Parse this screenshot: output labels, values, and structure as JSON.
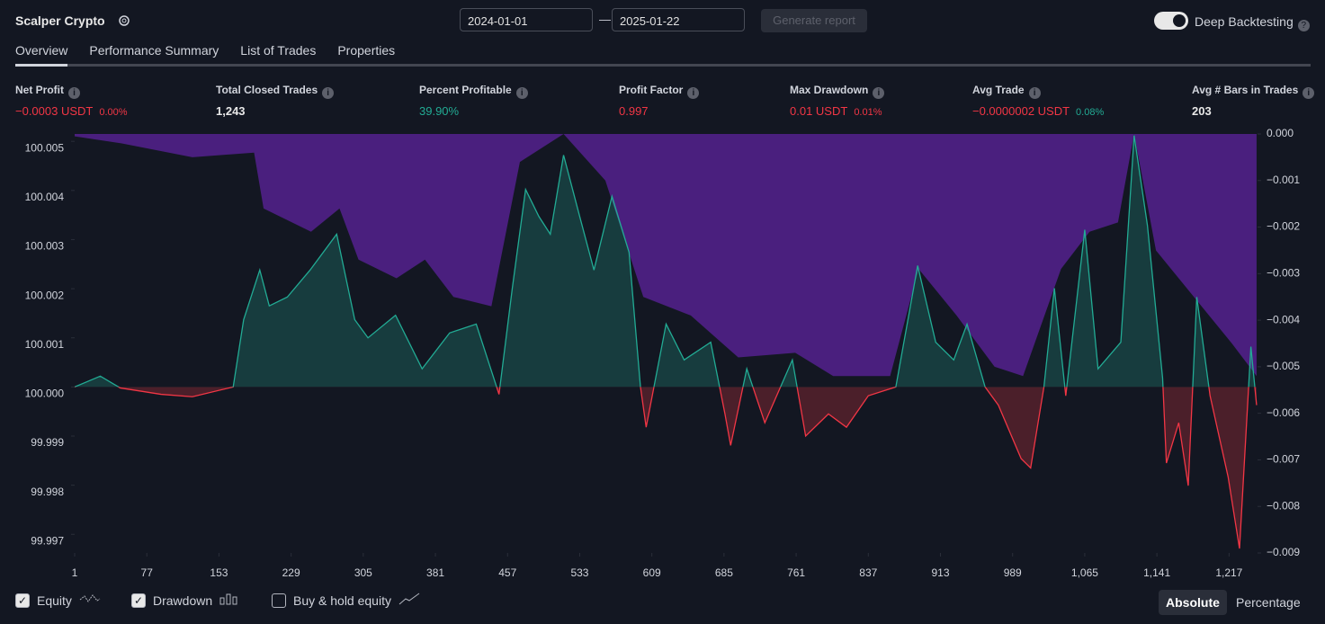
{
  "header": {
    "title": "Scalper Crypto",
    "start_date": "2024-01-01",
    "end_date": "2025-01-22",
    "generate_button": "Generate report",
    "toggle_label": "Deep Backtesting"
  },
  "tabs": [
    "Overview",
    "Performance Summary",
    "List of Trades",
    "Properties"
  ],
  "metrics": [
    {
      "label": "Net Profit",
      "value": "−0.0003 USDT",
      "percent": "0.00%",
      "tone": "negative"
    },
    {
      "label": "Total Closed Trades",
      "value": "1,243",
      "tone": "neutral"
    },
    {
      "label": "Percent Profitable",
      "value": "39.90%",
      "tone": "positive"
    },
    {
      "label": "Profit Factor",
      "value": "0.997",
      "tone": "negative"
    },
    {
      "label": "Max Drawdown",
      "value": "0.01 USDT",
      "percent": "0.01%",
      "tone": "negative"
    },
    {
      "label": "Avg Trade",
      "value": "−0.0000002 USDT",
      "percent": "0.08%",
      "tone": "negative",
      "percent_tone": "positive"
    },
    {
      "label": "Avg # Bars in Trades",
      "value": "203",
      "tone": "neutral"
    }
  ],
  "chart_data": {
    "type": "line",
    "xlim": [
      1,
      1247
    ],
    "xticks": [
      1,
      77,
      153,
      229,
      305,
      381,
      457,
      533,
      609,
      685,
      761,
      837,
      913,
      989,
      {
        "value": 1065,
        "label": "1,065"
      },
      {
        "value": 1141,
        "label": "1,141"
      },
      {
        "value": 1217,
        "label": "1,217"
      }
    ],
    "ylim": [
      99.99662,
      100.00515
    ],
    "yticks": [
      100.005,
      100.004,
      100.003,
      100.002,
      100.001,
      {
        "value": 100,
        "label": "100.000"
      },
      99.999,
      99.998,
      99.997
    ],
    "y2lim": [
      -0.009,
      0
    ],
    "y2ticks": [
      {
        "value": 0,
        "label": "0.000"
      },
      {
        "value": -0.001,
        "label": "−0.001"
      },
      {
        "value": -0.002,
        "label": "−0.002"
      },
      {
        "value": -0.003,
        "label": "−0.003"
      },
      {
        "value": -0.004,
        "label": "−0.004"
      },
      {
        "value": -0.005,
        "label": "−0.005"
      },
      {
        "value": -0.006,
        "label": "−0.006"
      },
      {
        "value": -0.007,
        "label": "−0.007"
      },
      {
        "value": -0.008,
        "label": "−0.008"
      },
      {
        "value": -0.009,
        "label": "−0.009"
      }
    ],
    "series": [
      {
        "name": "Drawdown",
        "color": "#4a1f7e",
        "axis": "y2",
        "x": [
          1,
          50,
          125,
          190,
          200,
          250,
          280,
          300,
          340,
          370,
          400,
          440,
          470,
          516,
          560,
          600,
          650,
          700,
          760,
          800,
          860,
          890,
          930,
          970,
          1000,
          1040,
          1070,
          1100,
          1117,
          1140,
          1180,
          1220,
          1246
        ],
        "values": [
          -5e-05,
          -0.0002,
          -0.0005,
          -0.0004,
          -0.0016,
          -0.0021,
          -0.0016,
          -0.0027,
          -0.0031,
          -0.0027,
          -0.0035,
          -0.0037,
          -0.0006,
          0,
          -0.001,
          -0.0035,
          -0.0039,
          -0.0048,
          -0.0047,
          -0.0052,
          -0.0052,
          -0.0029,
          -0.0039,
          -0.005,
          -0.0052,
          -0.0029,
          -0.0021,
          -0.0019,
          0,
          -0.0025,
          -0.0035,
          -0.0045,
          -0.0052
        ]
      },
      {
        "name": "Equity",
        "color": "#22ab94",
        "negative_color": "#f23645",
        "x": [
          1,
          28,
          49,
          92,
          125,
          168,
          179,
          196,
          206,
          225,
          249,
          277,
          296,
          310,
          339,
          367,
          396,
          424,
          448,
          462,
          476,
          490,
          502,
          516,
          533,
          548,
          567,
          585,
          597,
          603,
          624,
          643,
          671,
          686,
          692,
          709,
          728,
          757,
          771,
          795,
          814,
          837,
          866,
          889,
          908,
          927,
          941,
          960,
          974,
          998,
          1008,
          1022,
          1033,
          1045,
          1065,
          1079,
          1103,
          1117,
          1131,
          1147,
          1151,
          1164,
          1174,
          1183,
          1197,
          1216,
          1228,
          1240,
          1246
        ],
        "values": [
          100.0,
          100.00022,
          99.99998,
          99.99985,
          99.9998,
          100.0,
          100.00137,
          100.00238,
          100.00165,
          100.00183,
          100.00238,
          100.00311,
          100.00137,
          100.001,
          100.00146,
          100.00037,
          100.0011,
          100.00128,
          99.99985,
          100.00201,
          100.00402,
          100.00347,
          100.00311,
          100.00472,
          100.00347,
          100.00238,
          100.00388,
          100.00274,
          100.0,
          99.99918,
          100.00128,
          100.00055,
          100.00091,
          99.99945,
          99.99881,
          100.00037,
          99.99927,
          100.00055,
          99.999,
          99.99945,
          99.99918,
          99.99982,
          100.0,
          100.00247,
          100.00091,
          100.00055,
          100.00128,
          100.0,
          99.99963,
          99.99854,
          99.99835,
          100.0,
          100.00201,
          99.99982,
          100.0032,
          100.00037,
          100.00091,
          100.00512,
          100.00329,
          100.00018,
          99.99845,
          99.99927,
          99.99799,
          100.00183,
          99.99982,
          99.99817,
          99.99671,
          100.00082,
          99.99963
        ]
      }
    ]
  },
  "chart_options": [
    {
      "label": "Equity",
      "checked": true
    },
    {
      "label": "Drawdown",
      "checked": true
    },
    {
      "label": "Buy & hold equity",
      "checked": false
    }
  ],
  "scale_modes": [
    "Absolute",
    "Percentage"
  ],
  "active_scale_mode": 0
}
